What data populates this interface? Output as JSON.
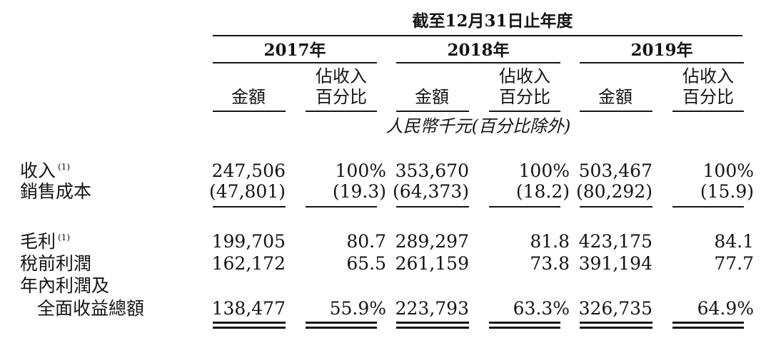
{
  "header": {
    "period_title": "截至12月31日止年度",
    "years": [
      "2017年",
      "2018年",
      "2019年"
    ],
    "col_amount": "金額",
    "col_pct_line1": "佔收入",
    "col_pct_line2": "百分比",
    "unit_note": "人民幣千元(百分比除外)"
  },
  "rows": [
    {
      "label": "收入",
      "note": "(1)",
      "v": [
        "247,506",
        "100%",
        "353,670",
        "100%",
        "503,467",
        "100%"
      ]
    },
    {
      "label": "銷售成本",
      "note": "",
      "v": [
        "(47,801)",
        "(19.3)",
        "(64,373)",
        "(18.2)",
        "(80,292)",
        "(15.9)"
      ]
    },
    {
      "label": "毛利",
      "note": "(1)",
      "v": [
        "199,705",
        "80.7",
        "289,297",
        "81.8",
        "423,175",
        "84.1"
      ]
    },
    {
      "label": "稅前利潤",
      "note": "",
      "v": [
        "162,172",
        "65.5",
        "261,159",
        "73.8",
        "391,194",
        "77.7"
      ]
    },
    {
      "label": "年內利潤及",
      "label2": "全面收益總額",
      "note": "",
      "v": [
        "138,477",
        "55.9%",
        "223,793",
        "63.3%",
        "326,735",
        "64.9%"
      ]
    }
  ]
}
